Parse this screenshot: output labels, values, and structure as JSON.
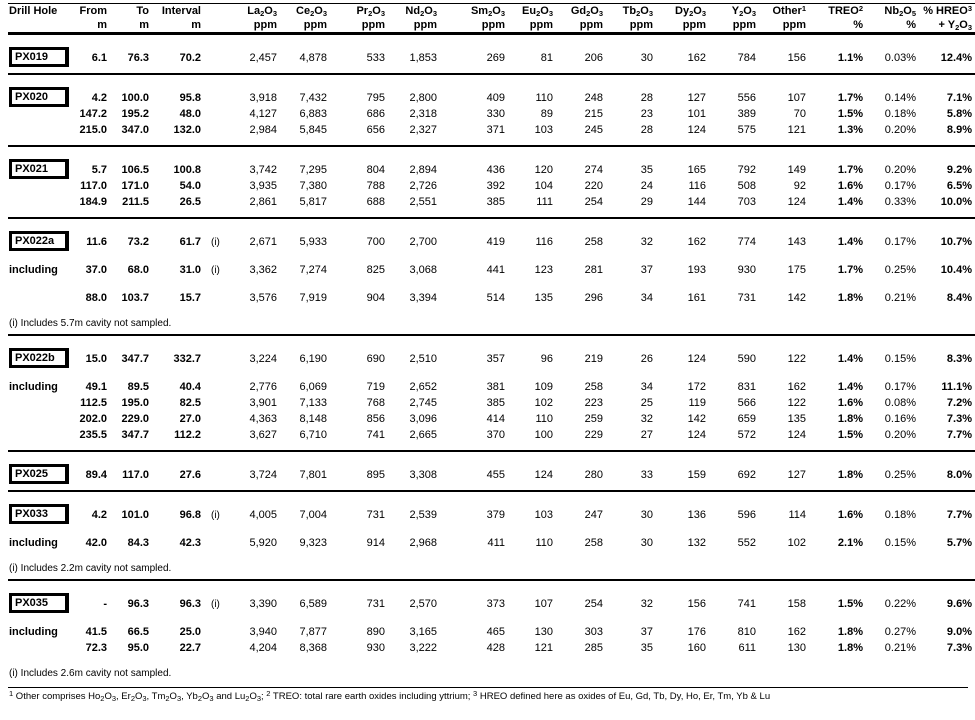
{
  "table": {
    "columns": [
      {
        "key": "hole",
        "label": "Drill Hole",
        "unit": "",
        "align": "left"
      },
      {
        "key": "from",
        "label": "From",
        "unit": "m"
      },
      {
        "key": "to",
        "label": "To",
        "unit": "m"
      },
      {
        "key": "interval",
        "label": "Interval",
        "unit": "m"
      },
      {
        "key": "marker",
        "label": "",
        "unit": ""
      },
      {
        "key": "la2o3",
        "label": "La{2}O{3}",
        "unit": "ppm"
      },
      {
        "key": "ce2o3",
        "label": "Ce{2}O{3}",
        "unit": "ppm"
      },
      {
        "key": "pr2o3",
        "label": "Pr{2}O{3}",
        "unit": "ppm"
      },
      {
        "key": "nd2o3",
        "label": "Nd{2}O{3}",
        "unit": "ppm"
      },
      {
        "key": "sm2o3",
        "label": "Sm{2}O{3}",
        "unit": "ppm"
      },
      {
        "key": "eu2o3",
        "label": "Eu{2}O{3}",
        "unit": "ppm"
      },
      {
        "key": "gd2o3",
        "label": "Gd{2}O{3}",
        "unit": "ppm"
      },
      {
        "key": "tb2o3",
        "label": "Tb{2}O{3}",
        "unit": "ppm"
      },
      {
        "key": "dy2o3",
        "label": "Dy{2}O{3}",
        "unit": "ppm"
      },
      {
        "key": "y2o3",
        "label": "Y{2}O{3}",
        "unit": "ppm"
      },
      {
        "key": "other",
        "label": "Other[1]",
        "unit": "ppm"
      },
      {
        "key": "treo",
        "label": "TREO[2]",
        "unit": "%"
      },
      {
        "key": "nb2o5",
        "label": "Nb{2}O{5}",
        "unit": "%"
      },
      {
        "key": "hreo",
        "label": "% HREO[3]",
        "unit": "+ Y{2}O{3}"
      }
    ],
    "sections": [
      {
        "rows": [
          {
            "hole": "PX019",
            "prefix": "",
            "from": "6.1",
            "to": "76.3",
            "interval": "70.2",
            "marker": "",
            "values": [
              "2,457",
              "4,878",
              "533",
              "1,853",
              "269",
              "81",
              "206",
              "30",
              "162",
              "784",
              "156",
              "1.1%",
              "0.03%",
              "12.4%"
            ]
          }
        ],
        "note": null
      },
      {
        "rows": [
          {
            "hole": "PX020",
            "prefix": "",
            "from": "4.2",
            "to": "100.0",
            "interval": "95.8",
            "marker": "",
            "values": [
              "3,918",
              "7,432",
              "795",
              "2,800",
              "409",
              "110",
              "248",
              "28",
              "127",
              "556",
              "107",
              "1.7%",
              "0.14%",
              "7.1%"
            ]
          },
          {
            "hole": "",
            "prefix": "",
            "from": "147.2",
            "to": "195.2",
            "interval": "48.0",
            "marker": "",
            "values": [
              "4,127",
              "6,883",
              "686",
              "2,318",
              "330",
              "89",
              "215",
              "23",
              "101",
              "389",
              "70",
              "1.5%",
              "0.18%",
              "5.8%"
            ]
          },
          {
            "hole": "",
            "prefix": "",
            "from": "215.0",
            "to": "347.0",
            "interval": "132.0",
            "marker": "",
            "values": [
              "2,984",
              "5,845",
              "656",
              "2,327",
              "371",
              "103",
              "245",
              "28",
              "124",
              "575",
              "121",
              "1.3%",
              "0.20%",
              "8.9%"
            ]
          }
        ],
        "note": null
      },
      {
        "rows": [
          {
            "hole": "PX021",
            "prefix": "",
            "from": "5.7",
            "to": "106.5",
            "interval": "100.8",
            "marker": "",
            "values": [
              "3,742",
              "7,295",
              "804",
              "2,894",
              "436",
              "120",
              "274",
              "35",
              "165",
              "792",
              "149",
              "1.7%",
              "0.20%",
              "9.2%"
            ]
          },
          {
            "hole": "",
            "prefix": "",
            "from": "117.0",
            "to": "171.0",
            "interval": "54.0",
            "marker": "",
            "values": [
              "3,935",
              "7,380",
              "788",
              "2,726",
              "392",
              "104",
              "220",
              "24",
              "116",
              "508",
              "92",
              "1.6%",
              "0.17%",
              "6.5%"
            ]
          },
          {
            "hole": "",
            "prefix": "",
            "from": "184.9",
            "to": "211.5",
            "interval": "26.5",
            "marker": "",
            "values": [
              "2,861",
              "5,817",
              "688",
              "2,551",
              "385",
              "111",
              "254",
              "29",
              "144",
              "703",
              "124",
              "1.4%",
              "0.33%",
              "10.0%"
            ]
          }
        ],
        "note": null
      },
      {
        "rows": [
          {
            "hole": "PX022a",
            "prefix": "",
            "from": "11.6",
            "to": "73.2",
            "interval": "61.7",
            "marker": "(i)",
            "values": [
              "2,671",
              "5,933",
              "700",
              "2,700",
              "419",
              "116",
              "258",
              "32",
              "162",
              "774",
              "143",
              "1.4%",
              "0.17%",
              "10.7%"
            ]
          },
          {
            "hole": "",
            "prefix": "including",
            "from": "37.0",
            "to": "68.0",
            "interval": "31.0",
            "marker": "(i)",
            "gap": true,
            "values": [
              "3,362",
              "7,274",
              "825",
              "3,068",
              "441",
              "123",
              "281",
              "37",
              "193",
              "930",
              "175",
              "1.7%",
              "0.25%",
              "10.4%"
            ]
          },
          {
            "hole": "",
            "prefix": "",
            "from": "88.0",
            "to": "103.7",
            "interval": "15.7",
            "marker": "",
            "gap": true,
            "values": [
              "3,576",
              "7,919",
              "904",
              "3,394",
              "514",
              "135",
              "296",
              "34",
              "161",
              "731",
              "142",
              "1.8%",
              "0.21%",
              "8.4%"
            ]
          }
        ],
        "note": "(i) Includes 5.7m cavity not sampled."
      },
      {
        "rows": [
          {
            "hole": "PX022b",
            "prefix": "",
            "from": "15.0",
            "to": "347.7",
            "interval": "332.7",
            "marker": "",
            "values": [
              "3,224",
              "6,190",
              "690",
              "2,510",
              "357",
              "96",
              "219",
              "26",
              "124",
              "590",
              "122",
              "1.4%",
              "0.15%",
              "8.3%"
            ]
          },
          {
            "hole": "",
            "prefix": "including",
            "from": "49.1",
            "to": "89.5",
            "interval": "40.4",
            "marker": "",
            "gap": true,
            "values": [
              "2,776",
              "6,069",
              "719",
              "2,652",
              "381",
              "109",
              "258",
              "34",
              "172",
              "831",
              "162",
              "1.4%",
              "0.17%",
              "11.1%"
            ]
          },
          {
            "hole": "",
            "prefix": "",
            "from": "112.5",
            "to": "195.0",
            "interval": "82.5",
            "marker": "",
            "values": [
              "3,901",
              "7,133",
              "768",
              "2,745",
              "385",
              "102",
              "223",
              "25",
              "119",
              "566",
              "122",
              "1.6%",
              "0.08%",
              "7.2%"
            ]
          },
          {
            "hole": "",
            "prefix": "",
            "from": "202.0",
            "to": "229.0",
            "interval": "27.0",
            "marker": "",
            "values": [
              "4,363",
              "8,148",
              "856",
              "3,096",
              "414",
              "110",
              "259",
              "32",
              "142",
              "659",
              "135",
              "1.8%",
              "0.16%",
              "7.3%"
            ]
          },
          {
            "hole": "",
            "prefix": "",
            "from": "235.5",
            "to": "347.7",
            "interval": "112.2",
            "marker": "",
            "values": [
              "3,627",
              "6,710",
              "741",
              "2,665",
              "370",
              "100",
              "229",
              "27",
              "124",
              "572",
              "124",
              "1.5%",
              "0.20%",
              "7.7%"
            ]
          }
        ],
        "note": null
      },
      {
        "rows": [
          {
            "hole": "PX025",
            "prefix": "",
            "from": "89.4",
            "to": "117.0",
            "interval": "27.6",
            "marker": "",
            "values": [
              "3,724",
              "7,801",
              "895",
              "3,308",
              "455",
              "124",
              "280",
              "33",
              "159",
              "692",
              "127",
              "1.8%",
              "0.25%",
              "8.0%"
            ]
          }
        ],
        "note": null
      },
      {
        "rows": [
          {
            "hole": "PX033",
            "prefix": "",
            "from": "4.2",
            "to": "101.0",
            "interval": "96.8",
            "marker": "(i)",
            "values": [
              "4,005",
              "7,004",
              "731",
              "2,539",
              "379",
              "103",
              "247",
              "30",
              "136",
              "596",
              "114",
              "1.6%",
              "0.18%",
              "7.7%"
            ]
          },
          {
            "hole": "",
            "prefix": "including",
            "from": "42.0",
            "to": "84.3",
            "interval": "42.3",
            "marker": "",
            "gap": true,
            "values": [
              "5,920",
              "9,323",
              "914",
              "2,968",
              "411",
              "110",
              "258",
              "30",
              "132",
              "552",
              "102",
              "2.1%",
              "0.15%",
              "5.7%"
            ]
          }
        ],
        "note": "(i) Includes 2.2m cavity not sampled."
      },
      {
        "rows": [
          {
            "hole": "PX035",
            "prefix": "",
            "from": "-",
            "to": "96.3",
            "interval": "96.3",
            "marker": "(i)",
            "values": [
              "3,390",
              "6,589",
              "731",
              "2,570",
              "373",
              "107",
              "254",
              "32",
              "156",
              "741",
              "158",
              "1.5%",
              "0.22%",
              "9.6%"
            ]
          },
          {
            "hole": "",
            "prefix": "including",
            "from": "41.5",
            "to": "66.5",
            "interval": "25.0",
            "marker": "",
            "gap": true,
            "values": [
              "3,940",
              "7,877",
              "890",
              "3,165",
              "465",
              "130",
              "303",
              "37",
              "176",
              "810",
              "162",
              "1.8%",
              "0.27%",
              "9.0%"
            ]
          },
          {
            "hole": "",
            "prefix": "",
            "from": "72.3",
            "to": "95.0",
            "interval": "22.7",
            "marker": "",
            "values": [
              "4,204",
              "8,368",
              "930",
              "3,222",
              "428",
              "121",
              "285",
              "35",
              "160",
              "611",
              "130",
              "1.8%",
              "0.21%",
              "7.3%"
            ]
          }
        ],
        "note": "(i) Includes 2.6m cavity not sampled."
      }
    ],
    "footnote": "[1] Other comprises Ho{2}O{3}, Er{2}O{3}, Tm{2}O{3}, Yb{2}O{3} and Lu{2}O{3}; [2] TREO: total rare earth oxides including yttrium; [3] HREO defined here as oxides of Eu, Gd, Tb, Dy, Ho, Er, Tm, Yb &amp; Lu"
  }
}
